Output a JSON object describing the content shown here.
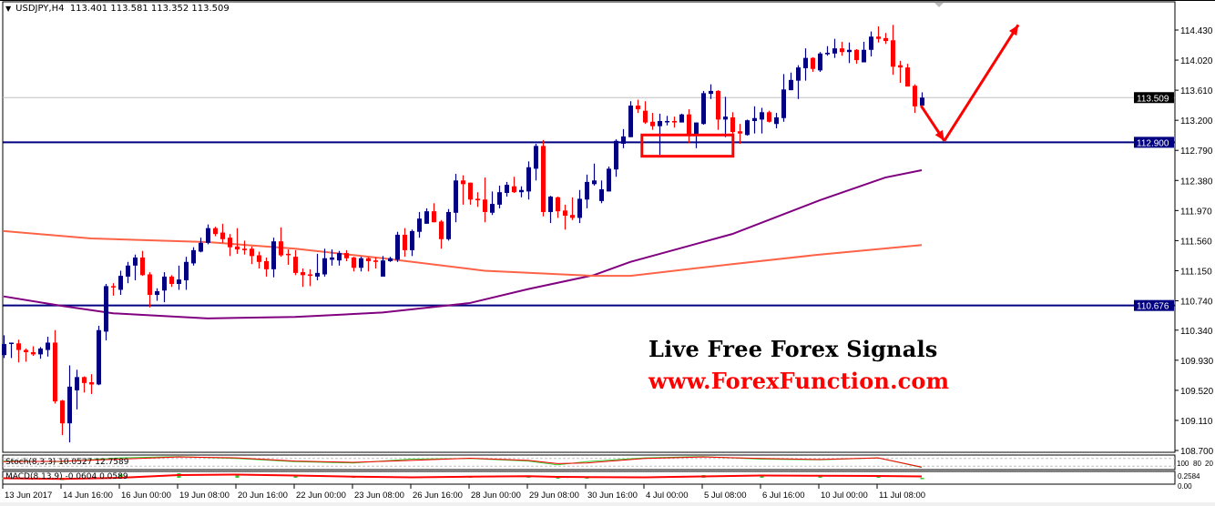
{
  "header": {
    "symbol": "USDJPY,H4",
    "ohlc": "113.401 113.581 113.352 113.509"
  },
  "overlay": {
    "line1": "Live Free Forex Signals",
    "line2": "www.ForexFunction.com"
  },
  "colors": {
    "bull": "#000080",
    "bear": "#ff0000",
    "ma_fast": "#800080",
    "ma_slow": "#ff6347",
    "level": "#000080",
    "annotation": "#ff0000",
    "stoch_main": "#32cd32",
    "stoch_signal": "#ff0000",
    "macd_hist": "#32cd32",
    "macd_signal": "#ff0000"
  },
  "chart_data": {
    "type": "candlestick",
    "symbol": "USDJPY",
    "timeframe": "H4",
    "ylim": [
      108.7,
      114.43
    ],
    "y_ticks": [
      "114.430",
      "114.020",
      "113.610",
      "113.200",
      "112.790",
      "112.380",
      "111.970",
      "111.560",
      "111.150",
      "110.740",
      "110.340",
      "109.930",
      "109.520",
      "109.110",
      "108.700"
    ],
    "x_labels": [
      {
        "bar": 0,
        "label": "13 Jun 2017"
      },
      {
        "bar": 8,
        "label": "14 Jun 16:00"
      },
      {
        "bar": 16,
        "label": "16 Jun 00:00"
      },
      {
        "bar": 24,
        "label": "19 Jun 08:00"
      },
      {
        "bar": 32,
        "label": "20 Jun 16:00"
      },
      {
        "bar": 40,
        "label": "22 Jun 00:00"
      },
      {
        "bar": 48,
        "label": "23 Jun 08:00"
      },
      {
        "bar": 56,
        "label": "26 Jun 16:00"
      },
      {
        "bar": 64,
        "label": "28 Jun 00:00"
      },
      {
        "bar": 72,
        "label": "29 Jun 08:00"
      },
      {
        "bar": 80,
        "label": "30 Jun 16:00"
      },
      {
        "bar": 88,
        "label": "4 Jul 00:00"
      },
      {
        "bar": 96,
        "label": "5 Jul 08:00"
      },
      {
        "bar": 104,
        "label": "6 Jul 16:00"
      },
      {
        "bar": 112,
        "label": "10 Jul 00:00"
      },
      {
        "bar": 120,
        "label": "11 Jul 08:00"
      }
    ],
    "candles_ohlc": [
      [
        110.0,
        110.27,
        109.96,
        110.15
      ],
      [
        110.16,
        110.17,
        109.96,
        110.17
      ],
      [
        110.16,
        110.21,
        109.9,
        110.07
      ],
      [
        110.07,
        110.09,
        109.91,
        110.04
      ],
      [
        110.04,
        110.12,
        109.99,
        110.01
      ],
      [
        110.01,
        110.11,
        109.95,
        110.09
      ],
      [
        110.07,
        110.25,
        109.98,
        110.17
      ],
      [
        110.17,
        110.34,
        109.34,
        109.37
      ],
      [
        109.38,
        109.39,
        108.91,
        109.07
      ],
      [
        109.07,
        109.86,
        108.81,
        109.57
      ],
      [
        109.52,
        109.8,
        109.26,
        109.7
      ],
      [
        109.7,
        109.71,
        109.49,
        109.62
      ],
      [
        109.63,
        109.74,
        109.47,
        109.6
      ],
      [
        109.6,
        110.4,
        109.59,
        110.34
      ],
      [
        110.32,
        110.97,
        110.2,
        110.94
      ],
      [
        110.94,
        110.98,
        110.81,
        110.93
      ],
      [
        110.89,
        111.15,
        110.82,
        111.08
      ],
      [
        111.07,
        111.27,
        110.98,
        111.22
      ],
      [
        111.22,
        111.37,
        111.02,
        111.33
      ],
      [
        111.33,
        111.42,
        111.08,
        111.09
      ],
      [
        111.1,
        111.13,
        110.65,
        110.82
      ],
      [
        110.82,
        110.91,
        110.74,
        110.87
      ],
      [
        110.88,
        111.13,
        110.72,
        111.07
      ],
      [
        111.07,
        111.09,
        110.93,
        110.97
      ],
      [
        110.97,
        111.22,
        110.89,
        111.03
      ],
      [
        111.02,
        111.34,
        110.89,
        111.27
      ],
      [
        111.25,
        111.47,
        111.22,
        111.43
      ],
      [
        111.41,
        111.6,
        111.4,
        111.53
      ],
      [
        111.53,
        111.78,
        111.51,
        111.73
      ],
      [
        111.73,
        111.75,
        111.62,
        111.65
      ],
      [
        111.67,
        111.79,
        111.53,
        111.58
      ],
      [
        111.6,
        111.65,
        111.35,
        111.47
      ],
      [
        111.48,
        111.73,
        111.38,
        111.44
      ],
      [
        111.45,
        111.56,
        111.37,
        111.43
      ],
      [
        111.45,
        111.48,
        111.24,
        111.35
      ],
      [
        111.36,
        111.41,
        111.18,
        111.27
      ],
      [
        111.28,
        111.33,
        111.07,
        111.17
      ],
      [
        111.17,
        111.6,
        111.06,
        111.55
      ],
      [
        111.55,
        111.74,
        111.34,
        111.36
      ],
      [
        111.38,
        111.44,
        111.23,
        111.37
      ],
      [
        111.34,
        111.43,
        111.09,
        111.12
      ],
      [
        111.13,
        111.18,
        110.93,
        111.09
      ],
      [
        111.1,
        111.17,
        110.94,
        111.08
      ],
      [
        111.07,
        111.38,
        111.02,
        111.12
      ],
      [
        111.1,
        111.45,
        111.07,
        111.32
      ],
      [
        111.3,
        111.44,
        111.22,
        111.33
      ],
      [
        111.29,
        111.42,
        111.22,
        111.39
      ],
      [
        111.39,
        111.43,
        111.28,
        111.32
      ],
      [
        111.33,
        111.34,
        111.14,
        111.19
      ],
      [
        111.19,
        111.34,
        111.14,
        111.32
      ],
      [
        111.32,
        111.33,
        111.14,
        111.28
      ],
      [
        111.29,
        111.33,
        111.18,
        111.27
      ],
      [
        111.07,
        111.35,
        111.07,
        111.29
      ],
      [
        111.28,
        111.34,
        111.27,
        111.32
      ],
      [
        111.3,
        111.68,
        111.27,
        111.64
      ],
      [
        111.64,
        111.73,
        111.34,
        111.43
      ],
      [
        111.43,
        111.71,
        111.35,
        111.69
      ],
      [
        111.68,
        111.95,
        111.6,
        111.86
      ],
      [
        111.79,
        112.0,
        111.79,
        111.96
      ],
      [
        111.96,
        112.07,
        111.81,
        111.81
      ],
      [
        111.82,
        111.84,
        111.45,
        111.58
      ],
      [
        111.58,
        111.99,
        111.56,
        111.95
      ],
      [
        111.94,
        112.47,
        111.81,
        112.38
      ],
      [
        112.38,
        112.45,
        112.05,
        112.33
      ],
      [
        112.35,
        112.35,
        112.05,
        112.12
      ],
      [
        112.13,
        112.22,
        112.02,
        112.11
      ],
      [
        112.12,
        112.42,
        111.81,
        111.95
      ],
      [
        111.94,
        112.23,
        111.91,
        112.06
      ],
      [
        112.05,
        112.31,
        112.0,
        112.22
      ],
      [
        112.21,
        112.36,
        112.16,
        112.32
      ],
      [
        112.3,
        112.43,
        112.21,
        112.22
      ],
      [
        112.22,
        112.3,
        112.15,
        112.25
      ],
      [
        112.23,
        112.64,
        112.12,
        112.56
      ],
      [
        112.54,
        112.88,
        112.38,
        112.85
      ],
      [
        112.85,
        112.93,
        111.89,
        111.95
      ],
      [
        111.95,
        112.17,
        111.8,
        112.16
      ],
      [
        112.15,
        112.16,
        111.87,
        111.96
      ],
      [
        111.97,
        112.05,
        111.71,
        111.9
      ],
      [
        111.91,
        112.15,
        111.84,
        111.87
      ],
      [
        111.87,
        112.25,
        111.8,
        112.13
      ],
      [
        112.12,
        112.46,
        112.0,
        112.36
      ],
      [
        112.33,
        112.61,
        112.31,
        112.38
      ],
      [
        112.1,
        112.38,
        112.07,
        112.26
      ],
      [
        112.23,
        112.57,
        112.23,
        112.54
      ],
      [
        112.53,
        112.94,
        112.43,
        112.92
      ],
      [
        112.88,
        113.08,
        112.82,
        112.98
      ],
      [
        112.97,
        113.46,
        112.97,
        113.4
      ],
      [
        113.4,
        113.48,
        113.3,
        113.35
      ],
      [
        113.33,
        113.46,
        113.15,
        113.17
      ],
      [
        113.18,
        113.3,
        113.07,
        113.12
      ],
      [
        113.12,
        113.29,
        112.73,
        113.19
      ],
      [
        113.18,
        113.26,
        113.13,
        113.19
      ],
      [
        113.19,
        113.25,
        113.1,
        113.17
      ],
      [
        113.17,
        113.29,
        113.17,
        113.28
      ],
      [
        113.28,
        113.35,
        112.89,
        112.99
      ],
      [
        113.0,
        113.17,
        112.82,
        113.17
      ],
      [
        113.15,
        113.6,
        113.14,
        113.57
      ],
      [
        113.56,
        113.69,
        113.49,
        113.6
      ],
      [
        113.6,
        113.61,
        113.07,
        113.21
      ],
      [
        113.21,
        113.52,
        112.97,
        113.25
      ],
      [
        113.24,
        113.31,
        112.97,
        113.04
      ],
      [
        113.05,
        113.15,
        112.88,
        113.02
      ],
      [
        113.0,
        113.21,
        112.99,
        113.2
      ],
      [
        113.19,
        113.39,
        113.02,
        113.23
      ],
      [
        113.21,
        113.37,
        113.02,
        113.31
      ],
      [
        113.31,
        113.33,
        113.17,
        113.18
      ],
      [
        113.15,
        113.3,
        113.09,
        113.24
      ],
      [
        113.23,
        113.83,
        113.18,
        113.62
      ],
      [
        113.61,
        113.85,
        113.61,
        113.75
      ],
      [
        113.74,
        113.95,
        113.49,
        113.92
      ],
      [
        113.91,
        114.18,
        113.74,
        114.05
      ],
      [
        114.05,
        114.06,
        113.86,
        113.9
      ],
      [
        113.88,
        114.13,
        113.86,
        114.11
      ],
      [
        114.1,
        114.21,
        114.08,
        114.12
      ],
      [
        114.11,
        114.31,
        114.05,
        114.18
      ],
      [
        114.18,
        114.27,
        114.08,
        114.13
      ],
      [
        114.13,
        114.26,
        113.98,
        114.16
      ],
      [
        114.16,
        114.17,
        113.97,
        114.02
      ],
      [
        113.99,
        114.27,
        113.99,
        114.16
      ],
      [
        114.16,
        114.41,
        114.07,
        114.34
      ],
      [
        114.34,
        114.48,
        114.26,
        114.31
      ],
      [
        114.32,
        114.39,
        114.24,
        114.28
      ],
      [
        114.29,
        114.5,
        113.82,
        113.93
      ],
      [
        113.95,
        114.01,
        113.71,
        113.92
      ],
      [
        113.92,
        113.97,
        113.66,
        113.66
      ],
      [
        113.67,
        113.69,
        113.3,
        113.39
      ],
      [
        113.401,
        113.581,
        113.352,
        113.509
      ]
    ],
    "moving_averages": [
      {
        "color": "#800080",
        "points": [
          [
            0,
            110.8
          ],
          [
            8,
            110.67
          ],
          [
            15,
            110.57
          ],
          [
            28,
            110.5
          ],
          [
            40,
            110.52
          ],
          [
            52,
            110.58
          ],
          [
            64,
            110.71
          ],
          [
            72,
            110.9
          ],
          [
            81,
            111.09
          ],
          [
            86,
            111.27
          ],
          [
            100,
            111.65
          ],
          [
            112,
            112.11
          ],
          [
            121,
            112.42
          ],
          [
            126,
            112.52
          ]
        ]
      },
      {
        "color": "#ff6347",
        "points": [
          [
            0,
            111.69
          ],
          [
            12,
            111.59
          ],
          [
            28,
            111.54
          ],
          [
            40,
            111.45
          ],
          [
            52,
            111.32
          ],
          [
            66,
            111.15
          ],
          [
            81,
            111.08
          ],
          [
            86,
            111.08
          ],
          [
            100,
            111.24
          ],
          [
            112,
            111.37
          ],
          [
            126,
            111.5
          ]
        ]
      }
    ],
    "horizontal_levels": [
      {
        "price": 112.9,
        "label": "112.900"
      },
      {
        "price": 110.676,
        "label": "110.676"
      }
    ],
    "current_price": {
      "price": 113.509,
      "label": "113.509"
    },
    "annotations": {
      "rectangle": {
        "bar_from": 87.6,
        "bar_to": 100.1,
        "price_top": 113.0,
        "price_bottom": 112.71
      },
      "arrow_path": [
        [
          125.9,
          113.4
        ],
        [
          129.1,
          112.92
        ],
        [
          139.25,
          114.5
        ]
      ]
    },
    "stochastic": {
      "label": "Stoch(8,3,3) 10.0527 12.7589",
      "levels": [
        80,
        20
      ],
      "ylim": [
        0,
        100
      ],
      "axis_labels": [
        "100",
        "80",
        "20"
      ],
      "points_bar_main_signal": [
        [
          0,
          60,
          55
        ],
        [
          8,
          55,
          58
        ],
        [
          16,
          85,
          75
        ],
        [
          24,
          95,
          92
        ],
        [
          32,
          80,
          85
        ],
        [
          40,
          55,
          60
        ],
        [
          48,
          45,
          50
        ],
        [
          56,
          75,
          65
        ],
        [
          64,
          80,
          82
        ],
        [
          72,
          60,
          65
        ],
        [
          76,
          30,
          40
        ],
        [
          80,
          55,
          45
        ],
        [
          88,
          85,
          80
        ],
        [
          96,
          95,
          92
        ],
        [
          104,
          75,
          80
        ],
        [
          112,
          70,
          72
        ],
        [
          120,
          85,
          85
        ],
        [
          126,
          10.0527,
          12.7589
        ]
      ]
    },
    "macd": {
      "label": "MACD(8,13,9) -0.0604 0.0589",
      "ylim": [
        -0.2584,
        0.2584
      ],
      "axis_labels": [
        "0.2584",
        "0.00"
      ],
      "points_bar_hist_signal": [
        [
          0,
          -0.05,
          -0.02
        ],
        [
          8,
          -0.1,
          -0.05
        ],
        [
          16,
          0.15,
          0.0
        ],
        [
          24,
          0.2,
          0.12
        ],
        [
          32,
          0.12,
          0.14
        ],
        [
          40,
          0.1,
          0.1
        ],
        [
          48,
          0.05,
          0.05
        ],
        [
          56,
          0.02,
          0.02
        ],
        [
          64,
          0.06,
          0.05
        ],
        [
          72,
          0.08,
          0.07
        ],
        [
          76,
          -0.02,
          0.04
        ],
        [
          80,
          0.0,
          0.03
        ],
        [
          88,
          0.03,
          0.02
        ],
        [
          96,
          0.12,
          0.06
        ],
        [
          104,
          0.12,
          0.1
        ],
        [
          112,
          0.08,
          0.09
        ],
        [
          120,
          0.08,
          0.08
        ],
        [
          126,
          -0.0604,
          0.0589
        ]
      ]
    }
  }
}
